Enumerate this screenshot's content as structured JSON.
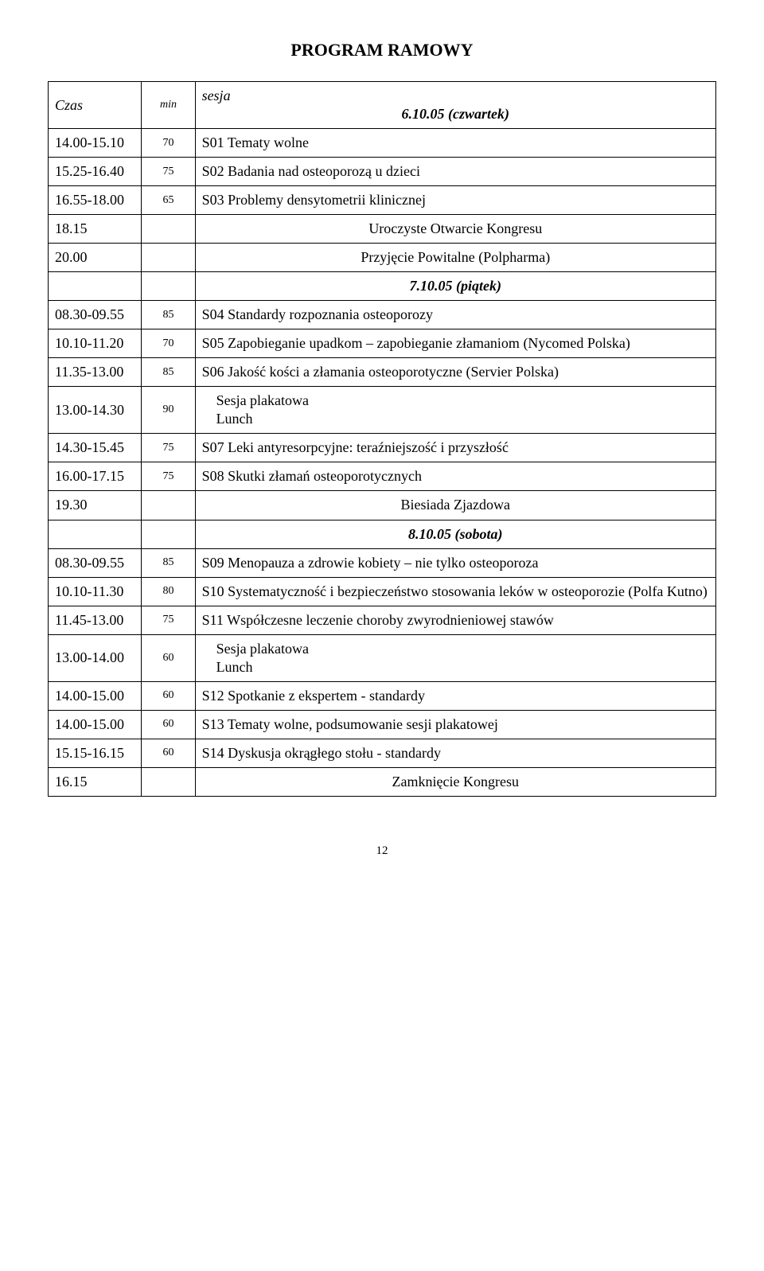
{
  "title": "PROGRAM RAMOWY",
  "header": {
    "czas": "Czas",
    "min": "min",
    "sesja": "sesja"
  },
  "day1": "6.10.05 (czwartek)",
  "r1": {
    "t": "14.00-15.10",
    "m": "70",
    "d": "S01 Tematy wolne"
  },
  "r2": {
    "t": "15.25-16.40",
    "m": "75",
    "d": "S02 Badania nad osteoporozą u dzieci"
  },
  "r3": {
    "t": "16.55-18.00",
    "m": "65",
    "d": "S03 Problemy densytometrii klinicznej"
  },
  "r4": {
    "t": "18.15",
    "d": "Uroczyste Otwarcie Kongresu"
  },
  "r5": {
    "t": "20.00",
    "d": "Przyjęcie Powitalne (Polpharma)"
  },
  "day2": "7.10.05 (piątek)",
  "r6": {
    "t": "08.30-09.55",
    "m": "85",
    "d": "S04 Standardy rozpoznania osteoporozy"
  },
  "r7": {
    "t": "10.10-11.20",
    "m": "70",
    "d": "S05 Zapobieganie upadkom – zapobieganie złamaniom (Nycomed Polska)"
  },
  "r8": {
    "t": "11.35-13.00",
    "m": "85",
    "d": "S06 Jakość kości a złamania osteoporotyczne (Servier Polska)"
  },
  "r9": {
    "t": "13.00-14.30",
    "m": "90",
    "d1": "Sesja plakatowa",
    "d2": "Lunch"
  },
  "r10": {
    "t": "14.30-15.45",
    "m": "75",
    "d": "S07 Leki antyresorpcyjne: teraźniejszość i przyszłość"
  },
  "r11": {
    "t": "16.00-17.15",
    "m": "75",
    "d": "S08 Skutki złamań osteoporotycznych"
  },
  "r12": {
    "t": "19.30",
    "d": "Biesiada Zjazdowa"
  },
  "day3": "8.10.05 (sobota)",
  "r13": {
    "t": "08.30-09.55",
    "m": "85",
    "d": "S09 Menopauza a zdrowie kobiety – nie tylko osteoporoza"
  },
  "r14": {
    "t": "10.10-11.30",
    "m": "80",
    "d": "S10 Systematyczność i bezpieczeństwo stosowania leków w osteoporozie (Polfa Kutno)"
  },
  "r15": {
    "t": "11.45-13.00",
    "m": "75",
    "d": "S11 Współczesne leczenie choroby zwyrodnieniowej stawów"
  },
  "r16": {
    "t": "13.00-14.00",
    "m": "60",
    "d1": "Sesja plakatowa",
    "d2": "Lunch"
  },
  "r17": {
    "t": "14.00-15.00",
    "m": "60",
    "d": "S12 Spotkanie z ekspertem - standardy"
  },
  "r18": {
    "t": "14.00-15.00",
    "m": "60",
    "d": "S13 Tematy wolne, podsumowanie sesji plakatowej"
  },
  "r19": {
    "t": "15.15-16.15",
    "m": "60",
    "d": "S14 Dyskusja okrągłego stołu - standardy"
  },
  "r20": {
    "t": "16.15",
    "d": "Zamknięcie Kongresu"
  },
  "page_number": "12"
}
